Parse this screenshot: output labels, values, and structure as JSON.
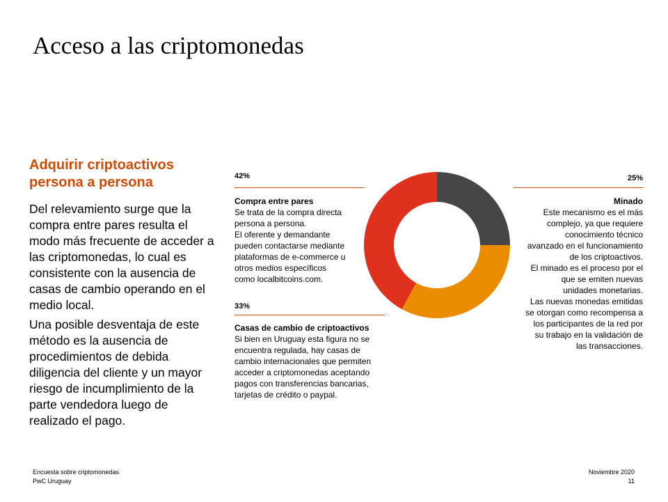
{
  "page": {
    "title": "Acceso a las criptomonedas",
    "subtitle": "Adquirir criptoactivos persona a persona",
    "paragraphs": [
      "Del relevamiento surge que la compra entre pares resulta el modo más frecuente de acceder a las criptomonedas, lo cual es consistente con la ausencia de casas de cambio operando en el medio local.",
      "Una posible desventaja de este método es la ausencia de procedimientos de debida diligencia del cliente y un mayor riesgo de incumplimiento de la parte vendedora luego de realizado el pago."
    ]
  },
  "callouts": {
    "compra": {
      "pct": "42%",
      "title": "Compra entre pares",
      "desc": "Se trata de la compra directa\npersona a persona.\nEl oferente y demandante\npueden contactarse mediante\nplataformas de e-commerce u\notros medios específicos\ncomo localbitcoins.com."
    },
    "casas": {
      "pct": "33%",
      "title": "Casas de cambio de criptoactivos",
      "desc": "Si bien en Uruguay esta figura no se\nencuentra regulada, hay casas de\ncambio internacionales que permiten\nacceder a criptomonedas aceptando\npagos con transferencias bancarias,\ntarjetas de crédito o paypal."
    },
    "minado": {
      "pct": "25%",
      "title": "Minado",
      "desc": "Este mecanismo es el más\ncomplejo, ya que requiere\nconocimiento técnico\navanzado en el funcionamiento\nde los criptoactivos.\nEl minado es el proceso por el\nque se emiten nuevas\nunidades monetarias.\nLas nuevas monedas emitidas\nse otorgan como recompensa a\nlos participantes de la red por\nsu trabajo en la validación de\nlas transacciones."
    }
  },
  "chart_data": {
    "type": "pie",
    "donut": true,
    "title": "",
    "categories": [
      "Minado",
      "Casas de cambio de criptoactivos",
      "Compra entre pares"
    ],
    "values": [
      25,
      33,
      42
    ],
    "colors": [
      "#464646",
      "#eb8c00",
      "#e0301e"
    ],
    "start": "12 o'clock",
    "direction": "clockwise"
  },
  "colors": {
    "accent": "#d04a02"
  },
  "footer": {
    "left_line1": "Encuesta sobre criptomonedas",
    "left_line2": "PwC Uruguay",
    "right_line1": "Noviembre 2020",
    "right_line2": "11"
  }
}
